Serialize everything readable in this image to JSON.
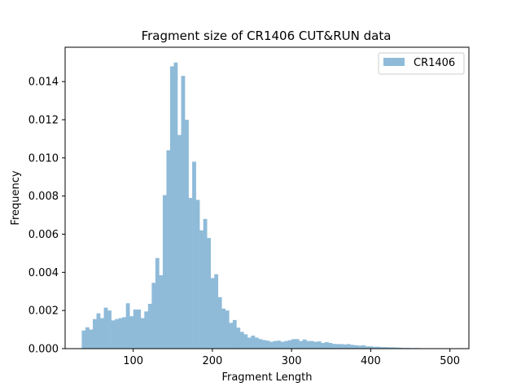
{
  "chart_data": {
    "type": "bar",
    "subtype": "histogram",
    "title": "Fragment size of CR1406 CUT&RUN data",
    "xlabel": "Fragment Length",
    "ylabel": "Frequency",
    "xlim": [
      14,
      524
    ],
    "ylim": [
      0,
      0.0158
    ],
    "x_ticks": [
      100,
      200,
      300,
      400,
      500
    ],
    "x_tick_labels": [
      "100",
      "200",
      "300",
      "400",
      "500"
    ],
    "y_ticks": [
      0,
      0.002,
      0.004,
      0.006,
      0.008,
      0.01,
      0.012,
      0.014
    ],
    "y_tick_labels": [
      "0.000",
      "0.002",
      "0.004",
      "0.006",
      "0.008",
      "0.010",
      "0.012",
      "0.014"
    ],
    "bin_start": 35,
    "bin_width": 4.65,
    "legend": {
      "position": "top-right",
      "entries": [
        "CR1406"
      ]
    },
    "grid": false,
    "series": [
      {
        "name": "CR1406",
        "color": "#8fbbd9",
        "values": [
          0.00095,
          0.00112,
          0.001,
          0.00155,
          0.00185,
          0.0016,
          0.00215,
          0.002,
          0.00148,
          0.00155,
          0.0016,
          0.00165,
          0.00238,
          0.0017,
          0.00205,
          0.00205,
          0.0016,
          0.00195,
          0.00235,
          0.00345,
          0.00475,
          0.00385,
          0.00805,
          0.0104,
          0.0148,
          0.015,
          0.0112,
          0.0143,
          0.012,
          0.0079,
          0.0098,
          0.0078,
          0.0062,
          0.0068,
          0.0058,
          0.0037,
          0.0039,
          0.0027,
          0.0021,
          0.002,
          0.00135,
          0.0015,
          0.0011,
          0.00088,
          0.00075,
          0.00058,
          0.00068,
          0.00058,
          0.0005,
          0.00045,
          0.00042,
          0.00036,
          0.0004,
          0.00042,
          0.00036,
          0.0004,
          0.00044,
          0.0005,
          0.0005,
          0.0004,
          0.00048,
          0.0004,
          0.0004,
          0.00036,
          0.00038,
          0.0003,
          0.00034,
          0.0003,
          0.00025,
          0.00024,
          0.00024,
          0.00022,
          0.00024,
          0.0002,
          0.00018,
          0.00016,
          0.00018,
          0.00012,
          0.00012,
          0.0001,
          0.0001,
          8e-05,
          8e-05,
          7e-05,
          7e-05,
          6e-05,
          5e-05,
          4e-05,
          4e-05,
          3e-05,
          3e-05,
          3e-05,
          2e-05,
          2e-05,
          2e-05,
          2e-05,
          1e-05,
          1e-05,
          1e-05,
          1e-05
        ]
      }
    ]
  }
}
